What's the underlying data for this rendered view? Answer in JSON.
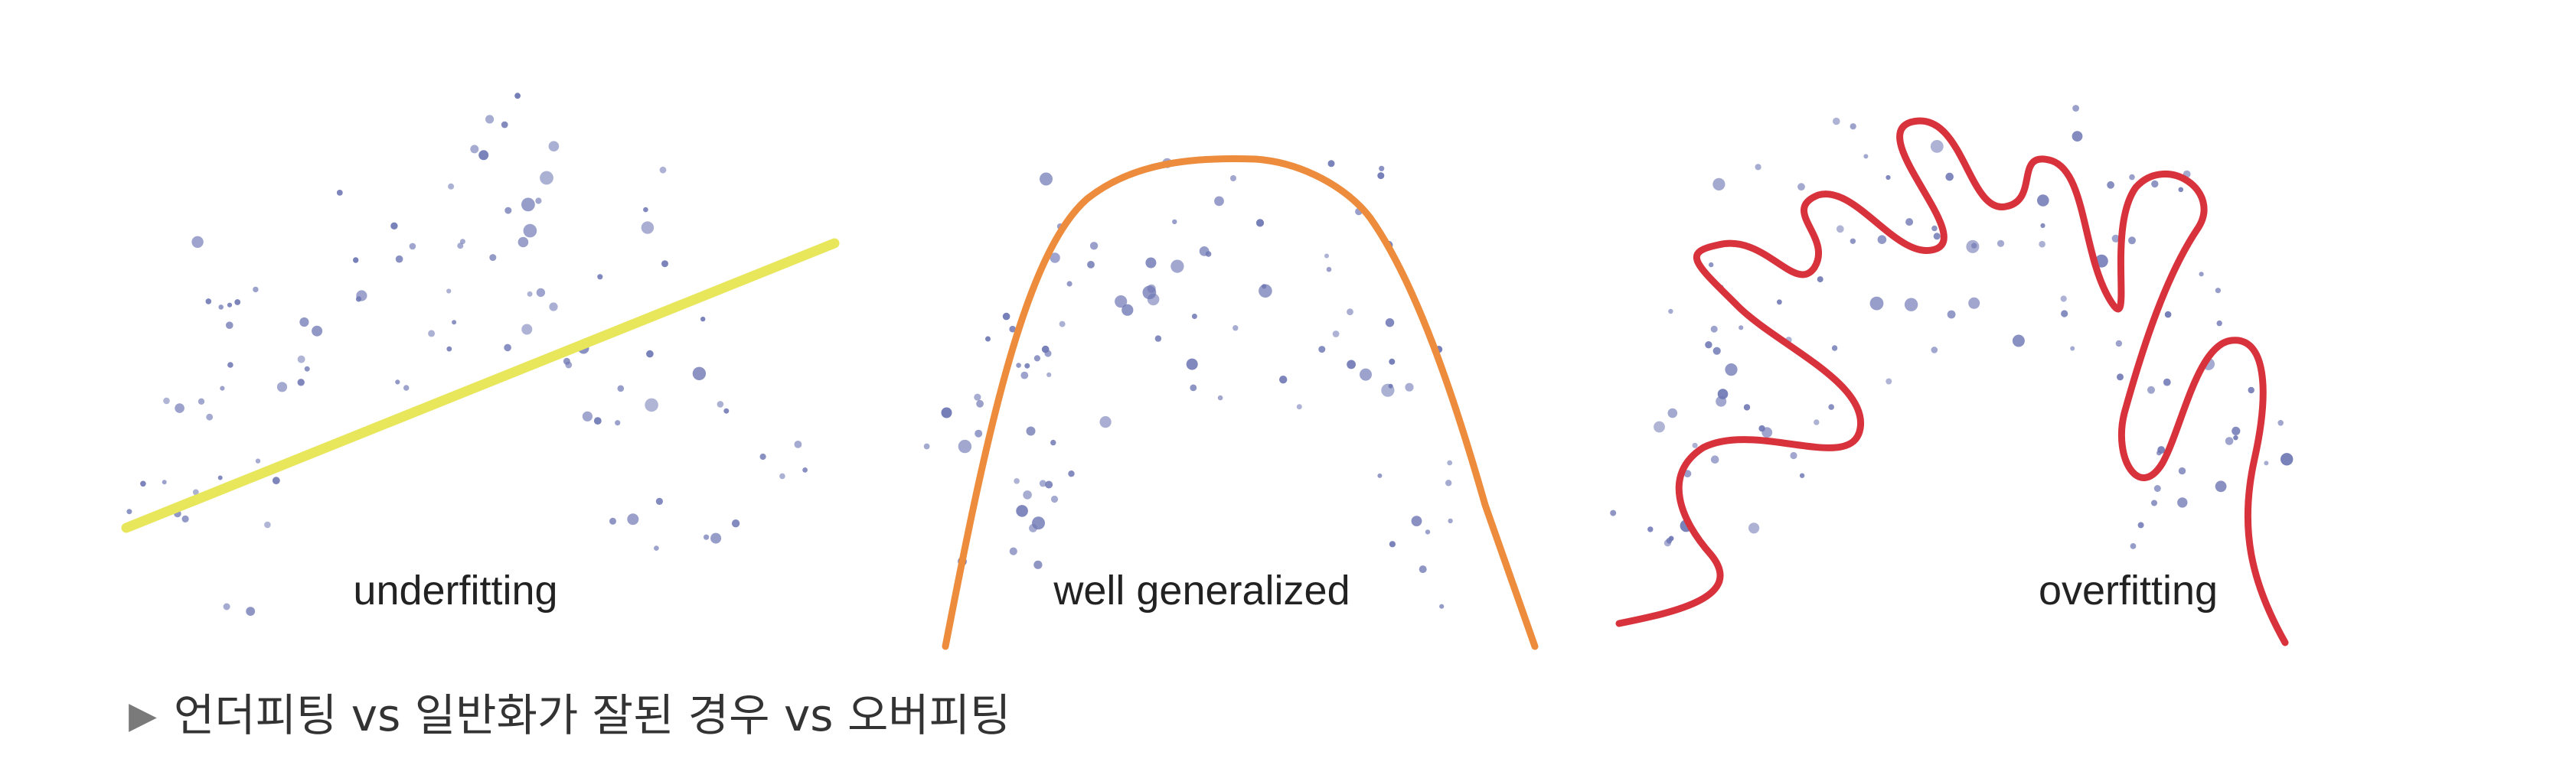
{
  "panels": {
    "underfitting": {
      "label": "underfitting",
      "curve_color": "#e8e65a"
    },
    "well_generalized": {
      "label": "well generalized",
      "curve_color": "#ec8c3c"
    },
    "overfitting": {
      "label": "overfitting",
      "curve_color": "#d8333c"
    }
  },
  "dot_color": "#6f78b4",
  "caption": {
    "arrow_icon": "triangle-right-icon",
    "text": "언더피팅 vs 일반화가 잘된 경우 vs 오버피팅"
  }
}
